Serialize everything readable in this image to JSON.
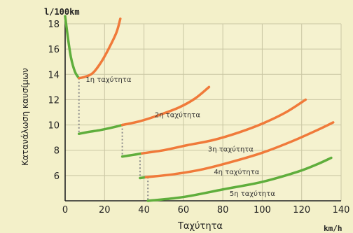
{
  "chart_data": {
    "type": "line",
    "title": "",
    "unit_label_top": "l/100km",
    "unit_label_right": "km/h",
    "xlabel": "Ταχύτητα",
    "ylabel": "Κατανάλωση καυσίμων",
    "xlim": [
      0,
      140
    ],
    "ylim": [
      4,
      18
    ],
    "xticks": [
      0,
      20,
      40,
      60,
      80,
      100,
      120,
      140
    ],
    "yticks": [
      6,
      8,
      10,
      12,
      14,
      16,
      18
    ],
    "grid": true,
    "colors": {
      "economy": "#5fae3c",
      "inefficient": "#f07a3a",
      "shift": "#8a8a8a",
      "axis": "#222222"
    },
    "series": [
      {
        "name": "1η ταχύτητα",
        "economy": [
          [
            0,
            18.6
          ],
          [
            1.5,
            16.8
          ],
          [
            3,
            15.3
          ],
          [
            5,
            14.2
          ],
          [
            7,
            13.7
          ]
        ],
        "inefficient": [
          [
            7,
            13.7
          ],
          [
            10,
            13.8
          ],
          [
            14,
            14.1
          ],
          [
            18,
            14.9
          ],
          [
            22,
            16.0
          ],
          [
            26,
            17.3
          ],
          [
            28,
            18.4
          ]
        ]
      },
      {
        "name": "2η ταχύτητα",
        "economy": [
          [
            7,
            9.3
          ],
          [
            12,
            9.45
          ],
          [
            18,
            9.6
          ],
          [
            24,
            9.8
          ],
          [
            29,
            10.0
          ]
        ],
        "inefficient": [
          [
            29,
            10.0
          ],
          [
            38,
            10.3
          ],
          [
            48,
            10.8
          ],
          [
            58,
            11.4
          ],
          [
            66,
            12.1
          ],
          [
            73,
            13.0
          ]
        ]
      },
      {
        "name": "3η ταχύτητα",
        "economy": [
          [
            29,
            7.5
          ],
          [
            34,
            7.62
          ],
          [
            39,
            7.75
          ]
        ],
        "inefficient": [
          [
            39,
            7.75
          ],
          [
            50,
            8.0
          ],
          [
            62,
            8.4
          ],
          [
            75,
            8.8
          ],
          [
            88,
            9.4
          ],
          [
            100,
            10.1
          ],
          [
            112,
            11.0
          ],
          [
            122,
            12.0
          ]
        ]
      },
      {
        "name": "4η ταχύτητα",
        "economy": [
          [
            38,
            5.8
          ],
          [
            41,
            5.87
          ]
        ],
        "inefficient": [
          [
            41,
            5.87
          ],
          [
            55,
            6.1
          ],
          [
            70,
            6.5
          ],
          [
            85,
            7.1
          ],
          [
            100,
            7.8
          ],
          [
            115,
            8.7
          ],
          [
            128,
            9.6
          ],
          [
            136,
            10.2
          ]
        ]
      },
      {
        "name": "5η ταχύτητα",
        "economy": [
          [
            42,
            4.0
          ],
          [
            60,
            4.3
          ],
          [
            80,
            4.9
          ],
          [
            100,
            5.5
          ],
          [
            118,
            6.3
          ],
          [
            128,
            6.9
          ],
          [
            135,
            7.4
          ]
        ],
        "inefficient": []
      }
    ],
    "shift_lines": [
      {
        "x": 7,
        "from": 13.7,
        "to": 9.3
      },
      {
        "x": 29,
        "from": 10.0,
        "to": 7.5
      },
      {
        "x": 38,
        "from": 7.75,
        "to": 5.8
      },
      {
        "x": 42,
        "from": 5.87,
        "to": 4.0
      }
    ],
    "annotations": [
      {
        "text": "1η ταχύτητα",
        "x": 22,
        "y": 13.4
      },
      {
        "text": "2η ταχύτητα",
        "x": 57,
        "y": 10.6
      },
      {
        "text": "3η ταχύτητα",
        "x": 84,
        "y": 7.9
      },
      {
        "text": "4η ταχύτητα",
        "x": 87,
        "y": 6.1
      },
      {
        "text": "5η ταχύτητα",
        "x": 95,
        "y": 4.4
      }
    ]
  }
}
